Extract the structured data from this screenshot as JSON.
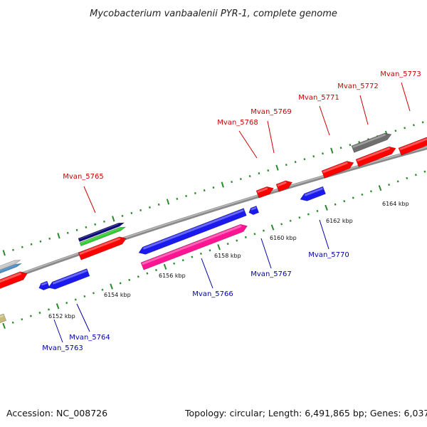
{
  "title": "Mycobacterium vanbaalenii PYR-1, complete genome",
  "accession": "Accession: NC_008726",
  "topology": "Topology: circular; Length: 6,491,865 bp; Genes: 6,037",
  "colors": {
    "forward_label": "#cc0000",
    "reverse_label": "#0000aa",
    "backbone": "#8a8a8a",
    "tick": "#2a8a2a",
    "red": "#ff0000",
    "blue": "#1a1aee",
    "pink": "#ff1493",
    "green": "#33cc33",
    "navy": "#0a0a7a",
    "gray": "#6e6e6e",
    "silver": "#c8c8c8",
    "steel": "#4a90c8",
    "khaki": "#c8bb7a"
  },
  "scale_labels": [
    "6152 kbp",
    "6154 kbp",
    "6156 kbp",
    "6158 kbp",
    "6160 kbp",
    "6162 kbp",
    "6164 kbp"
  ],
  "forward_genes": [
    "Mvan_5765",
    "Mvan_5768",
    "Mvan_5769",
    "Mvan_5771",
    "Mvan_5772",
    "Mvan_5773"
  ],
  "reverse_genes": [
    "Mvan_5763",
    "Mvan_5764",
    "Mvan_5766",
    "Mvan_5767",
    "Mvan_5770"
  ]
}
